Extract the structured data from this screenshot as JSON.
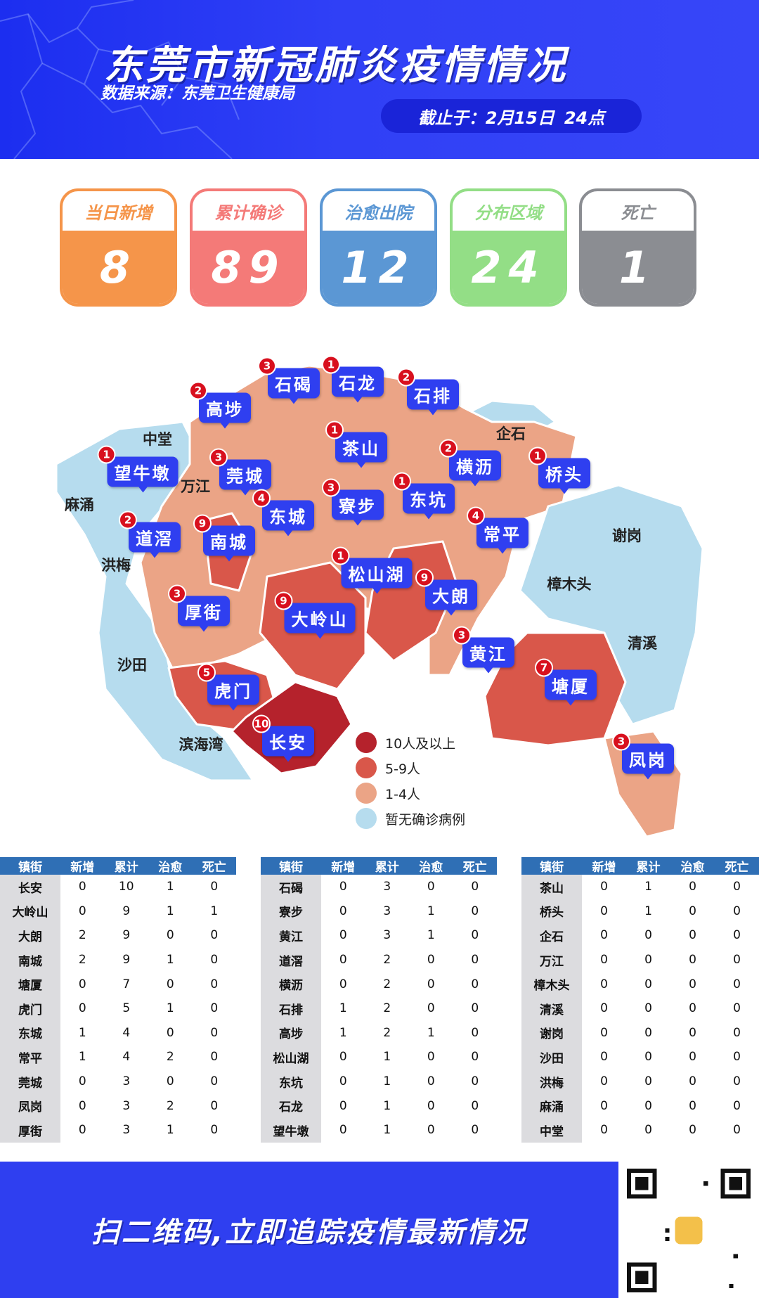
{
  "header": {
    "title": "东莞市新冠肺炎疫情情况",
    "source": "数据来源：东莞卫生健康局",
    "cutoff_label": "截止于：",
    "cutoff_date": "2月15日",
    "cutoff_time": "24点"
  },
  "stats": [
    {
      "label": "当日新增",
      "value": "8",
      "color": "#f5954a"
    },
    {
      "label": "累计确诊",
      "value": "89",
      "color": "#f47a78"
    },
    {
      "label": "治愈出院",
      "value": "12",
      "color": "#5b97d4"
    },
    {
      "label": "分布区域",
      "value": "24",
      "color": "#93de86"
    },
    {
      "label": "死亡",
      "value": "1",
      "color": "#8b8d92"
    }
  ],
  "map": {
    "colors": {
      "10plus": "#b5222c",
      "5to9": "#d9574a",
      "1to4": "#eba486",
      "none": "#b6dcee"
    },
    "pins": [
      {
        "name": "石碣",
        "count": "3"
      },
      {
        "name": "石龙",
        "count": "1"
      },
      {
        "name": "石排",
        "count": "2"
      },
      {
        "name": "高埗",
        "count": "2"
      },
      {
        "name": "望牛墩",
        "count": "1"
      },
      {
        "name": "莞城",
        "count": "3"
      },
      {
        "name": "茶山",
        "count": "1"
      },
      {
        "name": "横沥",
        "count": "2"
      },
      {
        "name": "桥头",
        "count": "1"
      },
      {
        "name": "东城",
        "count": "4"
      },
      {
        "name": "寮步",
        "count": "3"
      },
      {
        "name": "东坑",
        "count": "1"
      },
      {
        "name": "常平",
        "count": "4"
      },
      {
        "name": "道滘",
        "count": "2"
      },
      {
        "name": "南城",
        "count": "9"
      },
      {
        "name": "松山湖",
        "count": "1"
      },
      {
        "name": "大朗",
        "count": "9"
      },
      {
        "name": "厚街",
        "count": "3"
      },
      {
        "name": "大岭山",
        "count": "9"
      },
      {
        "name": "黄江",
        "count": "3"
      },
      {
        "name": "虎门",
        "count": "5"
      },
      {
        "name": "塘厦",
        "count": "7"
      },
      {
        "name": "长安",
        "count": "10"
      },
      {
        "name": "凤岗",
        "count": "3"
      }
    ],
    "plain_labels": [
      "中堂",
      "企石",
      "万江",
      "麻涌",
      "谢岗",
      "洪梅",
      "樟木头",
      "清溪",
      "沙田",
      "滨海湾"
    ],
    "legend": [
      {
        "label": "10人及以上",
        "color": "#b5222c"
      },
      {
        "label": "5-9人",
        "color": "#d9574a"
      },
      {
        "label": "1-4人",
        "color": "#eba486"
      },
      {
        "label": "暂无确诊病例",
        "color": "#b6dcee"
      }
    ]
  },
  "table": {
    "headers": [
      "镇街",
      "新增",
      "累计",
      "治愈",
      "死亡"
    ],
    "groups": [
      [
        [
          "长安",
          0,
          10,
          1,
          0
        ],
        [
          "大岭山",
          0,
          9,
          1,
          1
        ],
        [
          "大朗",
          2,
          9,
          0,
          0
        ],
        [
          "南城",
          2,
          9,
          1,
          0
        ],
        [
          "塘厦",
          0,
          7,
          0,
          0
        ],
        [
          "虎门",
          0,
          5,
          1,
          0
        ],
        [
          "东城",
          1,
          4,
          0,
          0
        ],
        [
          "常平",
          1,
          4,
          2,
          0
        ],
        [
          "莞城",
          0,
          3,
          0,
          0
        ],
        [
          "凤岗",
          0,
          3,
          2,
          0
        ],
        [
          "厚街",
          0,
          3,
          1,
          0
        ]
      ],
      [
        [
          "石碣",
          0,
          3,
          0,
          0
        ],
        [
          "寮步",
          0,
          3,
          1,
          0
        ],
        [
          "黄江",
          0,
          3,
          1,
          0
        ],
        [
          "道滘",
          0,
          2,
          0,
          0
        ],
        [
          "横沥",
          0,
          2,
          0,
          0
        ],
        [
          "石排",
          1,
          2,
          0,
          0
        ],
        [
          "高埗",
          1,
          2,
          1,
          0
        ],
        [
          "松山湖",
          0,
          1,
          0,
          0
        ],
        [
          "东坑",
          0,
          1,
          0,
          0
        ],
        [
          "石龙",
          0,
          1,
          0,
          0
        ],
        [
          "望牛墩",
          0,
          1,
          0,
          0
        ]
      ],
      [
        [
          "茶山",
          0,
          1,
          0,
          0
        ],
        [
          "桥头",
          0,
          1,
          0,
          0
        ],
        [
          "企石",
          0,
          0,
          0,
          0
        ],
        [
          "万江",
          0,
          0,
          0,
          0
        ],
        [
          "樟木头",
          0,
          0,
          0,
          0
        ],
        [
          "清溪",
          0,
          0,
          0,
          0
        ],
        [
          "谢岗",
          0,
          0,
          0,
          0
        ],
        [
          "沙田",
          0,
          0,
          0,
          0
        ],
        [
          "洪梅",
          0,
          0,
          0,
          0
        ],
        [
          "麻涌",
          0,
          0,
          0,
          0
        ],
        [
          "中堂",
          0,
          0,
          0,
          0
        ]
      ]
    ]
  },
  "footer": {
    "cta": "扫二维码,立即追踪疫情最新情况"
  }
}
